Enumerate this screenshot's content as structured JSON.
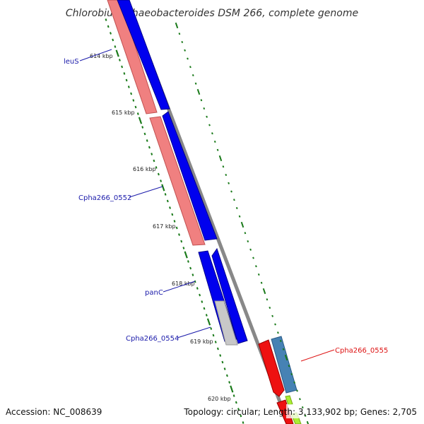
{
  "title": "Chlorobium phaeobacteroides DSM 266, complete genome",
  "footer": {
    "accession": "Accession: NC_008639",
    "topology": "Topology: circular; Length: 3,133,902 bp; Genes: 2,705"
  },
  "ruler_labels": [
    "614 kbp",
    "615 kbp",
    "616 kbp",
    "617 kbp",
    "618 kbp",
    "619 kbp",
    "620 kbp"
  ],
  "gene_labels": [
    {
      "text": "leuS",
      "color": "#1a1aaa"
    },
    {
      "text": "Cpha266_0552",
      "color": "#1a1aaa"
    },
    {
      "text": "panC",
      "color": "#1a1aaa"
    },
    {
      "text": "Cpha266_0554",
      "color": "#1a1aaa"
    },
    {
      "text": "Cpha266_0555",
      "color": "#dd1111"
    }
  ],
  "colors": {
    "forward_cds": "#0000ee",
    "reverse_pink": "#f07a7a",
    "reverse_red": "#ee1111",
    "gray_feature": "#c8c8c8",
    "steelblue_feature": "#4682b4",
    "lime_feature": "#aaee33",
    "backbone": "#888888",
    "tick_green": "#1a7a1a"
  }
}
